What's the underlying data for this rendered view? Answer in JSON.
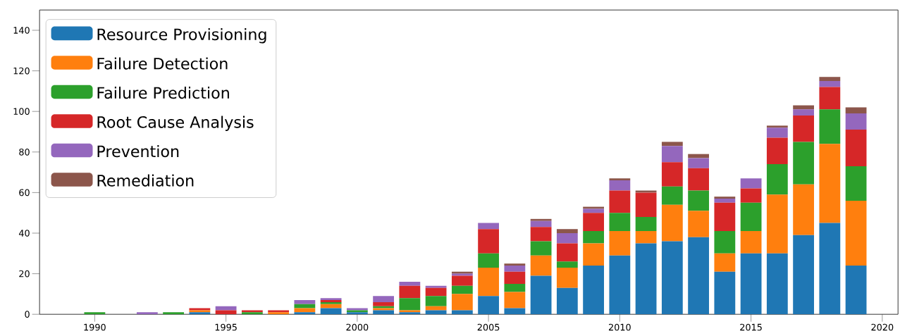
{
  "chart_data": {
    "type": "bar",
    "stacked": true,
    "x": [
      1990,
      1991,
      1992,
      1993,
      1994,
      1995,
      1996,
      1997,
      1998,
      1999,
      2000,
      2001,
      2002,
      2003,
      2004,
      2005,
      2006,
      2007,
      2008,
      2009,
      2010,
      2011,
      2012,
      2013,
      2014,
      2015,
      2016,
      2017,
      2018,
      2019
    ],
    "series": [
      {
        "name": "Resource Provisioning",
        "color": "#1f77b4",
        "values": [
          0,
          0,
          0,
          0,
          1,
          0,
          0,
          0,
          1,
          3,
          1,
          2,
          1,
          2,
          2,
          9,
          3,
          19,
          13,
          24,
          29,
          35,
          36,
          38,
          21,
          30,
          30,
          39,
          45,
          24
        ]
      },
      {
        "name": "Failure Detection",
        "color": "#ff7f0e",
        "values": [
          0,
          0,
          0,
          0,
          1,
          0,
          0,
          1,
          2,
          2,
          0,
          1,
          1,
          2,
          8,
          14,
          8,
          10,
          10,
          11,
          12,
          6,
          18,
          13,
          9,
          11,
          29,
          25,
          39,
          32
        ]
      },
      {
        "name": "Failure Prediction",
        "color": "#2ca02c",
        "values": [
          1,
          0,
          0,
          1,
          0,
          0,
          1,
          0,
          2,
          1,
          1,
          1,
          6,
          5,
          4,
          7,
          4,
          7,
          3,
          6,
          9,
          7,
          9,
          10,
          11,
          14,
          15,
          21,
          17,
          17
        ]
      },
      {
        "name": "Root Cause Analysis",
        "color": "#d62728",
        "values": [
          0,
          0,
          0,
          0,
          1,
          2,
          1,
          1,
          0,
          1,
          0,
          2,
          6,
          4,
          5,
          12,
          6,
          7,
          9,
          9,
          11,
          12,
          12,
          11,
          14,
          7,
          13,
          13,
          11,
          18
        ]
      },
      {
        "name": "Prevention",
        "color": "#9467bd",
        "values": [
          0,
          0,
          1,
          0,
          0,
          2,
          0,
          0,
          2,
          1,
          1,
          3,
          2,
          1,
          1,
          3,
          3,
          3,
          5,
          2,
          5,
          0,
          8,
          5,
          2,
          5,
          5,
          3,
          3,
          8
        ]
      },
      {
        "name": "Remediation",
        "color": "#8c564b",
        "values": [
          0,
          0,
          0,
          0,
          0,
          0,
          0,
          0,
          0,
          0,
          0,
          0,
          0,
          0,
          1,
          0,
          1,
          1,
          2,
          1,
          1,
          1,
          2,
          2,
          1,
          0,
          1,
          2,
          2,
          3
        ]
      }
    ],
    "xlim": [
      1987.9,
      2020.6
    ],
    "ylim": [
      0,
      150
    ],
    "xticks": [
      1990,
      1995,
      2000,
      2005,
      2010,
      2015,
      2020
    ],
    "yticks": [
      0,
      20,
      40,
      60,
      80,
      100,
      120,
      140
    ],
    "legend": "top left",
    "grid": false
  }
}
